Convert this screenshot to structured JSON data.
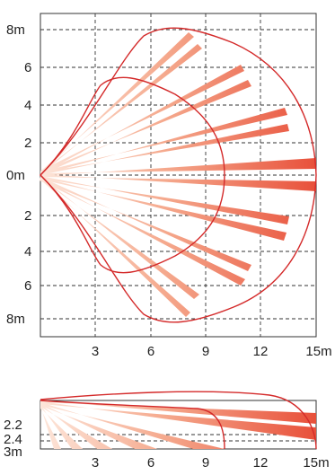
{
  "top_view": {
    "y_labels": [
      "8m",
      "6",
      "4",
      "2",
      "0m",
      "2",
      "4",
      "6",
      "8m"
    ],
    "x_labels": [
      "3",
      "6",
      "9",
      "12",
      "15m"
    ]
  },
  "side_view": {
    "y_labels": [
      "2.2",
      "2.4",
      "3m"
    ],
    "x_labels": [
      "3",
      "6",
      "9",
      "12",
      "15m"
    ]
  },
  "colors": {
    "beam_near": "#fbd7c4",
    "beam_far": "#e8503a",
    "zone_outline": "#d42a2a",
    "grid": "#333333"
  }
}
